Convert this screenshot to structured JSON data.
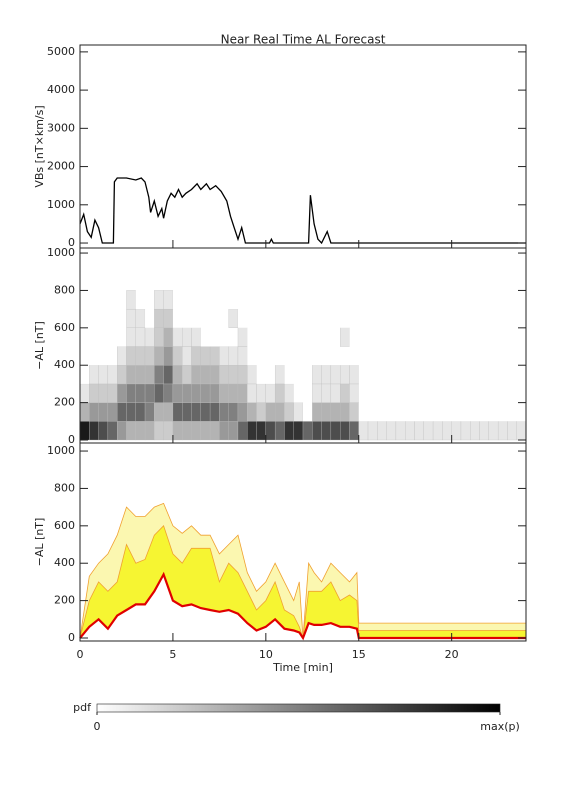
{
  "title": "Near Real Time AL Forecast",
  "chart_data": [
    {
      "type": "line",
      "ylabel": "VBs [nT×km/s]",
      "color": "#000000",
      "x": [
        0,
        0.2,
        0.4,
        0.6,
        0.8,
        1.0,
        1.2,
        1.8,
        1.85,
        2.0,
        2.5,
        3.0,
        3.3,
        3.5,
        3.7,
        3.8,
        4.0,
        4.2,
        4.4,
        4.5,
        4.7,
        4.9,
        5.1,
        5.3,
        5.5,
        5.7,
        6.0,
        6.3,
        6.5,
        6.8,
        7.0,
        7.3,
        7.6,
        7.9,
        8.1,
        8.3,
        8.5,
        8.7,
        8.9,
        10.2,
        10.3,
        10.4,
        12.3,
        12.4,
        12.6,
        12.8,
        13.0,
        13.3,
        13.5,
        24
      ],
      "values": [
        500,
        750,
        300,
        150,
        600,
        400,
        0,
        0,
        1600,
        1700,
        1700,
        1650,
        1700,
        1600,
        1200,
        800,
        1100,
        700,
        900,
        650,
        1100,
        1300,
        1200,
        1400,
        1200,
        1300,
        1400,
        1550,
        1400,
        1550,
        1400,
        1500,
        1350,
        1100,
        700,
        400,
        100,
        400,
        0,
        0,
        100,
        0,
        0,
        1250,
        500,
        100,
        0,
        300,
        0,
        0
      ],
      "ylim": [
        -130,
        5180
      ],
      "yticks": [
        0,
        1000,
        2000,
        3000,
        4000,
        5000
      ]
    },
    {
      "type": "heatmap",
      "ylabel": "−AL [nT]",
      "xbins": [
        0,
        0.5,
        1,
        1.5,
        2,
        2.5,
        3,
        3.5,
        4,
        4.5,
        5,
        5.5,
        6,
        6.5,
        7,
        7.5,
        8,
        8.5,
        9,
        9.5,
        10,
        10.5,
        11,
        11.5,
        12,
        12.5,
        13,
        13.5,
        14,
        14.5,
        15,
        15.5,
        16,
        16.5,
        17,
        17.5,
        18,
        18.5,
        19,
        19.5,
        20,
        20.5,
        21,
        21.5,
        22,
        22.5,
        23,
        23.5,
        24
      ],
      "ybins": [
        0,
        100,
        200,
        300,
        400,
        500,
        600,
        700,
        800
      ],
      "z": [
        [
          0.9,
          0.8,
          0.7,
          0.6,
          0.4,
          0.3,
          0.3,
          0.3,
          0.2,
          0.2,
          0.3,
          0.3,
          0.3,
          0.3,
          0.3,
          0.4,
          0.4,
          0.6,
          0.8,
          0.8,
          0.7,
          0.6,
          0.8,
          0.8,
          0.6,
          0.7,
          0.7,
          0.7,
          0.7,
          0.6,
          0.1,
          0.1,
          0.1,
          0.1,
          0.1,
          0.1,
          0.1,
          0.1,
          0.1,
          0.1,
          0.1,
          0.1,
          0.1,
          0.1,
          0.1,
          0.1,
          0.1,
          0.1
        ],
        [
          0.3,
          0.4,
          0.4,
          0.4,
          0.6,
          0.6,
          0.6,
          0.5,
          0.3,
          0.3,
          0.6,
          0.6,
          0.6,
          0.6,
          0.6,
          0.5,
          0.5,
          0.4,
          0.3,
          0.2,
          0.3,
          0.3,
          0.2,
          0.1,
          0,
          0.3,
          0.3,
          0.3,
          0.3,
          0.2,
          0,
          0,
          0,
          0,
          0,
          0,
          0,
          0,
          0,
          0,
          0,
          0,
          0,
          0,
          0,
          0,
          0,
          0
        ],
        [
          0.1,
          0.2,
          0.2,
          0.2,
          0.4,
          0.5,
          0.5,
          0.5,
          0.6,
          0.5,
          0.4,
          0.4,
          0.4,
          0.4,
          0.4,
          0.3,
          0.3,
          0.3,
          0.1,
          0.1,
          0.1,
          0.2,
          0.1,
          0,
          0,
          0.1,
          0.1,
          0.1,
          0.2,
          0.1,
          0,
          0,
          0,
          0,
          0,
          0,
          0,
          0,
          0,
          0,
          0,
          0,
          0,
          0,
          0,
          0,
          0,
          0
        ],
        [
          0,
          0.1,
          0.1,
          0.1,
          0.2,
          0.3,
          0.3,
          0.3,
          0.5,
          0.6,
          0.3,
          0.2,
          0.3,
          0.3,
          0.3,
          0.2,
          0.2,
          0.2,
          0.1,
          0,
          0,
          0.1,
          0,
          0,
          0,
          0.1,
          0.1,
          0.1,
          0.1,
          0.1,
          0,
          0,
          0,
          0,
          0,
          0,
          0,
          0,
          0,
          0,
          0,
          0,
          0,
          0,
          0,
          0,
          0,
          0
        ],
        [
          0,
          0,
          0,
          0,
          0.1,
          0.2,
          0.2,
          0.2,
          0.3,
          0.4,
          0.2,
          0.1,
          0.2,
          0.2,
          0.2,
          0.1,
          0.1,
          0.1,
          0,
          0,
          0,
          0,
          0,
          0,
          0,
          0,
          0,
          0,
          0,
          0,
          0,
          0,
          0,
          0,
          0,
          0,
          0,
          0,
          0,
          0,
          0,
          0,
          0,
          0,
          0,
          0,
          0,
          0
        ],
        [
          0,
          0,
          0,
          0,
          0,
          0.1,
          0.1,
          0.1,
          0.2,
          0.3,
          0.1,
          0.1,
          0.1,
          0,
          0,
          0,
          0,
          0.1,
          0,
          0,
          0,
          0,
          0,
          0,
          0,
          0,
          0,
          0,
          0.1,
          0,
          0,
          0,
          0,
          0,
          0,
          0,
          0,
          0,
          0,
          0,
          0,
          0,
          0,
          0,
          0,
          0,
          0,
          0
        ],
        [
          0,
          0,
          0,
          0,
          0,
          0.1,
          0.1,
          0,
          0.2,
          0.2,
          0,
          0,
          0,
          0,
          0,
          0,
          0.1,
          0,
          0,
          0,
          0,
          0,
          0,
          0,
          0,
          0,
          0,
          0,
          0,
          0,
          0,
          0,
          0,
          0,
          0,
          0,
          0,
          0,
          0,
          0,
          0,
          0,
          0,
          0,
          0,
          0,
          0,
          0
        ],
        [
          0,
          0,
          0,
          0,
          0,
          0.1,
          0,
          0,
          0.1,
          0.1,
          0,
          0,
          0,
          0,
          0,
          0,
          0,
          0,
          0,
          0,
          0,
          0,
          0,
          0,
          0,
          0,
          0,
          0,
          0,
          0,
          0,
          0,
          0,
          0,
          0,
          0,
          0,
          0,
          0,
          0,
          0,
          0,
          0,
          0,
          0,
          0,
          0,
          0
        ]
      ],
      "ylim": [
        -16,
        1027
      ],
      "yticks": [
        0,
        200,
        400,
        600,
        800,
        1000
      ],
      "colorbar": {
        "label": "pdf",
        "ticks": [
          0,
          {
            "value": 1,
            "label": "max(p)"
          }
        ]
      }
    },
    {
      "type": "area",
      "ylabel": "−AL [nT]",
      "xlabel": "Time [min]",
      "x": [
        0,
        0.5,
        1,
        1.5,
        2,
        2.5,
        3,
        3.5,
        4,
        4.5,
        5,
        5.5,
        6,
        6.5,
        7,
        7.5,
        8,
        8.5,
        9,
        9.5,
        10,
        10.5,
        11,
        11.5,
        11.8,
        12,
        12.3,
        12.6,
        13,
        13.5,
        14,
        14.5,
        14.9,
        15,
        24
      ],
      "series": [
        {
          "color": "#f0a030",
          "fill": "#fbf7b0",
          "values": [
            0,
            330,
            400,
            450,
            550,
            700,
            650,
            650,
            700,
            720,
            600,
            560,
            600,
            550,
            550,
            450,
            500,
            550,
            350,
            250,
            300,
            400,
            300,
            200,
            300,
            0,
            400,
            350,
            300,
            400,
            350,
            300,
            350,
            80,
            80
          ]
        },
        {
          "color": "#f0a030",
          "fill": "#f6f532",
          "values": [
            0,
            200,
            300,
            250,
            300,
            500,
            400,
            420,
            550,
            600,
            450,
            400,
            480,
            480,
            480,
            300,
            400,
            350,
            250,
            150,
            200,
            300,
            150,
            120,
            60,
            0,
            250,
            250,
            250,
            300,
            200,
            230,
            200,
            40,
            40
          ]
        },
        {
          "color": "#e00000",
          "fill": "#ffffff",
          "values": [
            0,
            60,
            100,
            50,
            120,
            150,
            180,
            180,
            250,
            340,
            200,
            170,
            180,
            160,
            150,
            140,
            150,
            130,
            80,
            40,
            60,
            100,
            50,
            40,
            30,
            0,
            80,
            70,
            70,
            80,
            60,
            60,
            50,
            0,
            0
          ]
        }
      ],
      "ylim": [
        -16,
        1043
      ],
      "yticks": [
        0,
        200,
        400,
        600,
        800,
        1000
      ],
      "xlim": [
        0,
        24
      ],
      "xticks": [
        0,
        5,
        10,
        15,
        20
      ]
    }
  ]
}
